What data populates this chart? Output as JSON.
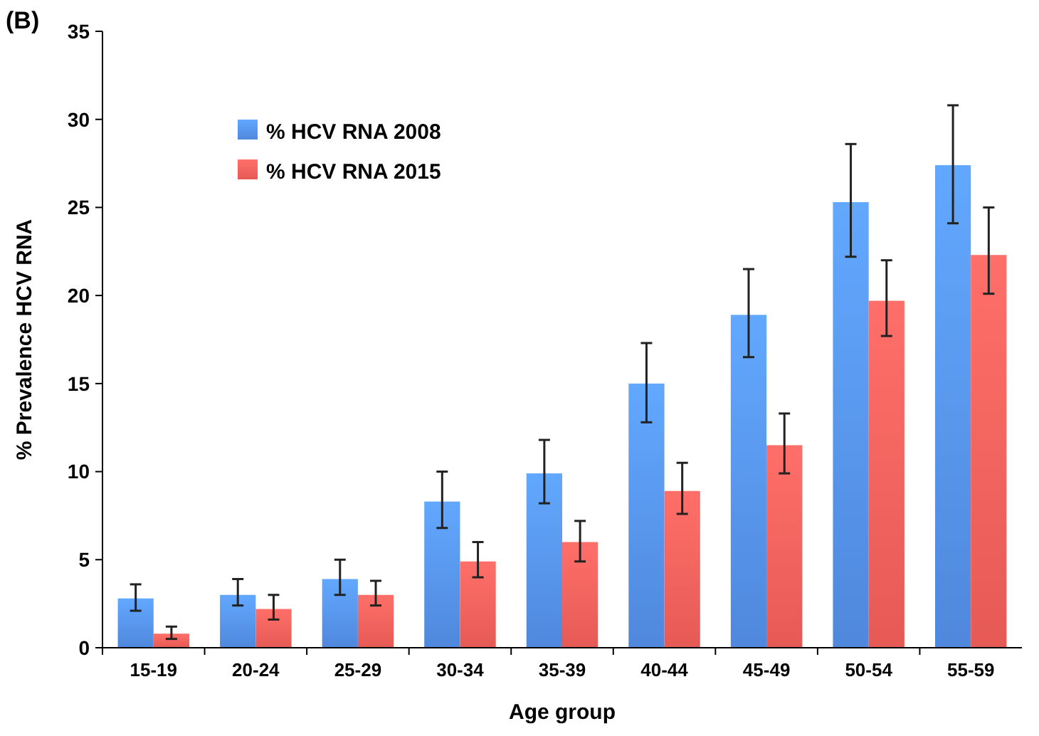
{
  "chart_data": {
    "type": "bar",
    "title": "(B)",
    "xlabel": "Age group",
    "ylabel": "% Prevalence HCV RNA",
    "categories": [
      "15-19",
      "20-24",
      "25-29",
      "30-34",
      "35-39",
      "40-44",
      "45-49",
      "50-54",
      "55-59"
    ],
    "series": [
      {
        "name": "% HCV RNA 2008",
        "color": "#4f88dc",
        "values": [
          2.8,
          3.0,
          3.9,
          8.3,
          9.9,
          15.0,
          18.9,
          25.3,
          27.4
        ],
        "errors": [
          [
            2.1,
            3.6
          ],
          [
            2.4,
            3.9
          ],
          [
            3.0,
            5.0
          ],
          [
            6.8,
            10.0
          ],
          [
            8.2,
            11.8
          ],
          [
            12.8,
            17.3
          ],
          [
            16.5,
            21.5
          ],
          [
            22.2,
            28.6
          ],
          [
            24.1,
            30.8
          ]
        ]
      },
      {
        "name": "% HCV RNA 2015",
        "color": "#e65a55",
        "values": [
          0.8,
          2.2,
          3.0,
          4.9,
          6.0,
          8.9,
          11.5,
          19.7,
          22.3
        ],
        "errors": [
          [
            0.5,
            1.2
          ],
          [
            1.6,
            3.0
          ],
          [
            2.4,
            3.8
          ],
          [
            4.0,
            6.0
          ],
          [
            4.9,
            7.2
          ],
          [
            7.6,
            10.5
          ],
          [
            9.9,
            13.3
          ],
          [
            17.7,
            22.0
          ],
          [
            20.1,
            25.0
          ]
        ]
      }
    ],
    "ylim": [
      0,
      35
    ],
    "yticks": [
      0,
      5,
      10,
      15,
      20,
      25,
      30,
      35
    ],
    "grid": false,
    "legend": "top left"
  }
}
